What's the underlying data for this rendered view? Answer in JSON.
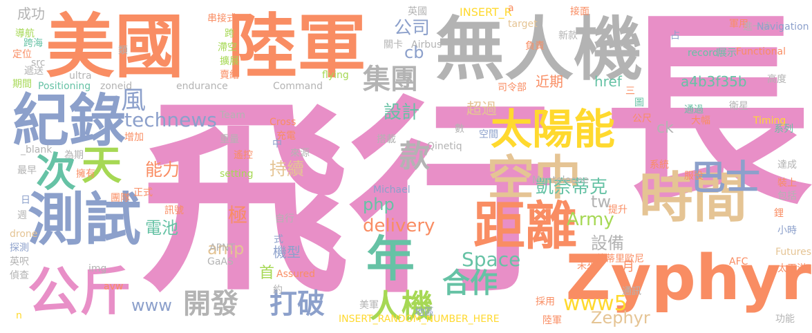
{
  "palette": {
    "pink": "#e88fc7",
    "salmon": "#f98d63",
    "gray": "#b3b3b3",
    "blue": "#8ca0cb",
    "green": "#66c2a5",
    "yellow": "#ffd92e",
    "lime": "#a6d854",
    "tan": "#e5c494"
  },
  "words": [
    {
      "text": "飛行",
      "color": "pink",
      "emphasis": "dominant"
    },
    {
      "text": "長",
      "color": "pink",
      "emphasis": "dominant"
    },
    {
      "text": "美國",
      "color": "salmon",
      "emphasis": "major"
    },
    {
      "text": "陸軍",
      "color": "salmon",
      "emphasis": "major"
    },
    {
      "text": "無人機",
      "color": "gray",
      "emphasis": "major"
    },
    {
      "text": "紀錄",
      "color": "blue",
      "emphasis": "major"
    },
    {
      "text": "測試",
      "color": "blue",
      "emphasis": "major"
    },
    {
      "text": "Zyphyr",
      "color": "salmon",
      "emphasis": "major"
    },
    {
      "text": "時間",
      "color": "tan",
      "emphasis": "major"
    },
    {
      "text": "太陽能",
      "color": "yellow",
      "emphasis": "large"
    },
    {
      "text": "距離",
      "color": "salmon",
      "emphasis": "large"
    },
    {
      "text": "年",
      "color": "green",
      "emphasis": "large"
    },
    {
      "text": "空中",
      "color": "tan",
      "emphasis": "large"
    },
    {
      "text": "公斤",
      "color": "pink",
      "emphasis": "large"
    },
    {
      "text": "次",
      "color": "green",
      "emphasis": "large"
    },
    {
      "text": "天",
      "color": "lime",
      "emphasis": "large"
    },
    {
      "text": "巴士",
      "color": "blue",
      "emphasis": "large"
    },
    {
      "text": "集團",
      "color": "gray",
      "emphasis": "medium"
    },
    {
      "text": "款",
      "color": "gray",
      "emphasis": "medium"
    },
    {
      "text": "風",
      "color": "blue",
      "emphasis": "medium"
    },
    {
      "text": "人機",
      "color": "lime",
      "emphasis": "medium"
    },
    {
      "text": "開發",
      "color": "gray",
      "emphasis": "medium"
    },
    {
      "text": "打破",
      "color": "blue",
      "emphasis": "medium"
    },
    {
      "text": "合作",
      "color": "green",
      "emphasis": "medium"
    },
    {
      "text": "www5",
      "color": "yellow",
      "emphasis": "medium"
    },
    {
      "text": "technews",
      "color": "blue",
      "emphasis": "medium"
    },
    {
      "text": "delivery",
      "color": "salmon",
      "emphasis": "medium"
    },
    {
      "text": "Space",
      "color": "green",
      "emphasis": "medium"
    },
    {
      "text": "公司",
      "color": "blue",
      "emphasis": "small"
    },
    {
      "text": "cb",
      "color": "blue",
      "emphasis": "small"
    },
    {
      "text": "設計",
      "color": "green",
      "emphasis": "small"
    },
    {
      "text": "能力",
      "color": "salmon",
      "emphasis": "small"
    },
    {
      "text": "電池",
      "color": "green",
      "emphasis": "small"
    },
    {
      "text": "持續",
      "color": "tan",
      "emphasis": "small"
    },
    {
      "text": "凱奈蒂克",
      "color": "green",
      "emphasis": "small"
    },
    {
      "text": "php",
      "color": "green",
      "emphasis": "small"
    },
    {
      "text": "極",
      "color": "salmon",
      "emphasis": "small"
    },
    {
      "text": "amp",
      "color": "tan",
      "emphasis": "small"
    },
    {
      "text": "www",
      "color": "blue",
      "emphasis": "small"
    },
    {
      "text": "Army",
      "color": "lime",
      "emphasis": "small"
    },
    {
      "text": "tw",
      "color": "gray",
      "emphasis": "small"
    },
    {
      "text": "設備",
      "color": "gray",
      "emphasis": "small"
    },
    {
      "text": "Zephyr",
      "color": "tan",
      "emphasis": "small"
    },
    {
      "text": "機型",
      "color": "blue",
      "emphasis": "small"
    },
    {
      "text": "首",
      "color": "lime",
      "emphasis": "small"
    },
    {
      "text": "月",
      "color": "salmon",
      "emphasis": "small"
    },
    {
      "text": "a4b3f35b",
      "color": "green",
      "emphasis": "small"
    },
    {
      "text": "近期",
      "color": "salmon",
      "emphasis": "small"
    },
    {
      "text": "href",
      "color": "green",
      "emphasis": "small"
    },
    {
      "text": "超過",
      "color": "tan",
      "emphasis": "small"
    },
    {
      "text": "ck",
      "color": "gray",
      "emphasis": "small"
    },
    {
      "text": "成功",
      "color": "gray",
      "emphasis": "tiny"
    },
    {
      "text": "導航",
      "color": "lime",
      "emphasis": "tiny"
    },
    {
      "text": "跨海",
      "color": "green",
      "emphasis": "tiny"
    },
    {
      "text": "定位",
      "color": "salmon",
      "emphasis": "tiny"
    },
    {
      "text": "src",
      "color": "gray",
      "emphasis": "tiny"
    },
    {
      "text": "遞送",
      "color": "gray",
      "emphasis": "tiny"
    },
    {
      "text": "期間",
      "color": "lime",
      "emphasis": "tiny"
    },
    {
      "text": "Positioning",
      "color": "green",
      "emphasis": "tiny"
    },
    {
      "text": "zoneid",
      "color": "gray",
      "emphasis": "tiny"
    },
    {
      "text": "ultra",
      "color": "gray",
      "emphasis": "tiny"
    },
    {
      "text": "類",
      "color": "gray",
      "emphasis": "tiny"
    },
    {
      "text": "串接式",
      "color": "salmon",
      "emphasis": "tiny"
    },
    {
      "text": "跨",
      "color": "lime",
      "emphasis": "tiny"
    },
    {
      "text": "滯空",
      "color": "lime",
      "emphasis": "tiny"
    },
    {
      "text": "擴展",
      "color": "lime",
      "emphasis": "tiny"
    },
    {
      "text": "賣給",
      "color": "salmon",
      "emphasis": "tiny"
    },
    {
      "text": "endurance",
      "color": "gray",
      "emphasis": "tiny"
    },
    {
      "text": "Command",
      "color": "gray",
      "emphasis": "tiny"
    },
    {
      "text": "英國",
      "color": "gray",
      "emphasis": "tiny"
    },
    {
      "text": "INSERT_R",
      "color": "yellow",
      "emphasis": "tiny"
    },
    {
      "text": "a",
      "color": "salmon",
      "emphasis": "tiny"
    },
    {
      "text": "target",
      "color": "tan",
      "emphasis": "tiny"
    },
    {
      "text": "接面",
      "color": "salmon",
      "emphasis": "tiny"
    },
    {
      "text": "新款",
      "color": "gray",
      "emphasis": "tiny"
    },
    {
      "text": "關卡",
      "color": "gray",
      "emphasis": "tiny"
    },
    {
      "text": "Airbus",
      "color": "gray",
      "emphasis": "tiny"
    },
    {
      "text": "負責",
      "color": "salmon",
      "emphasis": "tiny"
    },
    {
      "text": "flying",
      "color": "lime",
      "emphasis": "tiny"
    },
    {
      "text": "司令部",
      "color": "salmon",
      "emphasis": "tiny"
    },
    {
      "text": "軍用",
      "color": "salmon",
      "emphasis": "tiny"
    },
    {
      "text": "進一步",
      "color": "gray",
      "emphasis": "tiny"
    },
    {
      "text": "Navigation",
      "color": "blue",
      "emphasis": "tiny"
    },
    {
      "text": "占",
      "color": "blue",
      "emphasis": "tiny"
    },
    {
      "text": "record",
      "color": "green",
      "emphasis": "tiny"
    },
    {
      "text": "展示",
      "color": "green",
      "emphasis": "tiny"
    },
    {
      "text": "Functional",
      "color": "salmon",
      "emphasis": "tiny"
    },
    {
      "text": "高度",
      "color": "gray",
      "emphasis": "tiny"
    },
    {
      "text": "三",
      "color": "salmon",
      "emphasis": "tiny"
    },
    {
      "text": "圖",
      "color": "green",
      "emphasis": "tiny"
    },
    {
      "text": "公尺",
      "color": "salmon",
      "emphasis": "tiny"
    },
    {
      "text": "通過",
      "color": "green",
      "emphasis": "tiny"
    },
    {
      "text": "大幅",
      "color": "salmon",
      "emphasis": "tiny"
    },
    {
      "text": "衛星",
      "color": "gray",
      "emphasis": "tiny"
    },
    {
      "text": "Timing",
      "color": "yellow",
      "emphasis": "tiny"
    },
    {
      "text": "系列",
      "color": "green",
      "emphasis": "tiny"
    },
    {
      "text": "Team",
      "color": "gray",
      "emphasis": "tiny"
    },
    {
      "text": "Cross",
      "color": "salmon",
      "emphasis": "tiny"
    },
    {
      "text": "充電",
      "color": "salmon",
      "emphasis": "tiny"
    },
    {
      "text": "數",
      "color": "gray",
      "emphasis": "tiny"
    },
    {
      "text": "空間",
      "color": "blue",
      "emphasis": "tiny"
    },
    {
      "text": "搭載",
      "color": "gray",
      "emphasis": "tiny"
    },
    {
      "text": "Qinetiq",
      "color": "gray",
      "emphasis": "tiny"
    },
    {
      "text": "_blank",
      "color": "gray",
      "emphasis": "tiny"
    },
    {
      "text": "為期",
      "color": "gray",
      "emphasis": "tiny"
    },
    {
      "text": "增加",
      "color": "salmon",
      "emphasis": "tiny"
    },
    {
      "text": "重量",
      "color": "gray",
      "emphasis": "tiny"
    },
    {
      "text": "中",
      "color": "blue",
      "emphasis": "tiny"
    },
    {
      "text": "來源",
      "color": "gray",
      "emphasis": "tiny"
    },
    {
      "text": "遙控",
      "color": "salmon",
      "emphasis": "tiny"
    },
    {
      "text": "最早",
      "color": "gray",
      "emphasis": "tiny"
    },
    {
      "text": "擁有",
      "color": "salmon",
      "emphasis": "tiny"
    },
    {
      "text": "setting",
      "color": "lime",
      "emphasis": "tiny"
    },
    {
      "text": "服役",
      "color": "salmon",
      "emphasis": "tiny"
    },
    {
      "text": "系統",
      "color": "salmon",
      "emphasis": "tiny"
    },
    {
      "text": "達成",
      "color": "gray",
      "emphasis": "tiny"
    },
    {
      "text": "裝上",
      "color": "salmon",
      "emphasis": "tiny"
    },
    {
      "text": "Monteleone",
      "color": "gray",
      "emphasis": "tiny"
    },
    {
      "text": "Michael",
      "color": "blue",
      "emphasis": "tiny"
    },
    {
      "text": "正式",
      "color": "salmon",
      "emphasis": "tiny"
    },
    {
      "text": "團隊",
      "color": "salmon",
      "emphasis": "tiny"
    },
    {
      "text": "訊號",
      "color": "salmon",
      "emphasis": "tiny"
    },
    {
      "text": "日",
      "color": "blue",
      "emphasis": "tiny"
    },
    {
      "text": "提升",
      "color": "salmon",
      "emphasis": "tiny"
    },
    {
      "text": "包括",
      "color": "gray",
      "emphasis": "tiny"
    },
    {
      "text": "週",
      "color": "gray",
      "emphasis": "tiny"
    },
    {
      "text": "自行",
      "color": "gray",
      "emphasis": "tiny"
    },
    {
      "text": "鋰",
      "color": "salmon",
      "emphasis": "tiny"
    },
    {
      "text": "drone",
      "color": "tan",
      "emphasis": "tiny"
    },
    {
      "text": "探測",
      "color": "blue",
      "emphasis": "tiny"
    },
    {
      "text": "英呎",
      "color": "gray",
      "emphasis": "tiny"
    },
    {
      "text": "偵查",
      "color": "gray",
      "emphasis": "tiny"
    },
    {
      "text": "式",
      "color": "blue",
      "emphasis": "tiny"
    },
    {
      "text": "小時",
      "color": "blue",
      "emphasis": "tiny"
    },
    {
      "text": "APNT",
      "color": "gray",
      "emphasis": "tiny"
    },
    {
      "text": "Futures",
      "color": "tan",
      "emphasis": "tiny"
    },
    {
      "text": "未來",
      "color": "salmon",
      "emphasis": "tiny"
    },
    {
      "text": "蒙蒂里歐尼",
      "color": "salmon",
      "emphasis": "tiny"
    },
    {
      "text": "AFC",
      "color": "salmon",
      "emphasis": "tiny"
    },
    {
      "text": "img",
      "color": "gray",
      "emphasis": "tiny"
    },
    {
      "text": "GaAS",
      "color": "gray",
      "emphasis": "tiny"
    },
    {
      "text": "Assured",
      "color": "salmon",
      "emphasis": "tiny"
    },
    {
      "text": "太平洋",
      "color": "salmon",
      "emphasis": "tiny"
    },
    {
      "text": "avw",
      "color": "salmon",
      "emphasis": "tiny"
    },
    {
      "text": "約",
      "color": "gray",
      "emphasis": "tiny"
    },
    {
      "text": "通訊",
      "color": "gray",
      "emphasis": "tiny"
    },
    {
      "text": "美軍",
      "color": "gray",
      "emphasis": "tiny"
    },
    {
      "text": "採用",
      "color": "salmon",
      "emphasis": "tiny"
    },
    {
      "text": "n",
      "color": "yellow",
      "emphasis": "tiny"
    },
    {
      "text": "INSERT_RANDOM_NUMBER_HERE",
      "color": "yellow",
      "emphasis": "tiny"
    },
    {
      "text": "地區",
      "color": "blue",
      "emphasis": "tiny"
    },
    {
      "text": "陸軍",
      "color": "salmon",
      "emphasis": "tiny"
    },
    {
      "text": "功能",
      "color": "gray",
      "emphasis": "tiny"
    },
    {
      "text": "跨國",
      "color": "salmon",
      "emphasis": "tiny"
    }
  ]
}
